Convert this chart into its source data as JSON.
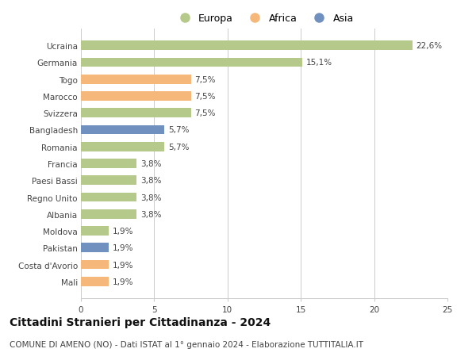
{
  "countries": [
    "Ucraina",
    "Germania",
    "Togo",
    "Marocco",
    "Svizzera",
    "Bangladesh",
    "Romania",
    "Francia",
    "Paesi Bassi",
    "Regno Unito",
    "Albania",
    "Moldova",
    "Pakistan",
    "Costa d'Avorio",
    "Mali"
  ],
  "values": [
    22.6,
    15.1,
    7.5,
    7.5,
    7.5,
    5.7,
    5.7,
    3.8,
    3.8,
    3.8,
    3.8,
    1.9,
    1.9,
    1.9,
    1.9
  ],
  "labels": [
    "22,6%",
    "15,1%",
    "7,5%",
    "7,5%",
    "7,5%",
    "5,7%",
    "5,7%",
    "3,8%",
    "3,8%",
    "3,8%",
    "3,8%",
    "1,9%",
    "1,9%",
    "1,9%",
    "1,9%"
  ],
  "continents": [
    "Europa",
    "Europa",
    "Africa",
    "Africa",
    "Europa",
    "Asia",
    "Europa",
    "Europa",
    "Europa",
    "Europa",
    "Europa",
    "Europa",
    "Asia",
    "Africa",
    "Africa"
  ],
  "colors": {
    "Europa": "#b5c98a",
    "Africa": "#f5b87a",
    "Asia": "#7090c0"
  },
  "xlim": [
    0,
    25
  ],
  "xticks": [
    0,
    5,
    10,
    15,
    20,
    25
  ],
  "title": "Cittadini Stranieri per Cittadinanza - 2024",
  "subtitle": "COMUNE DI AMENO (NO) - Dati ISTAT al 1° gennaio 2024 - Elaborazione TUTTITALIA.IT",
  "background_color": "#ffffff",
  "grid_color": "#cccccc",
  "bar_height": 0.55,
  "label_fontsize": 7.5,
  "tick_fontsize": 7.5,
  "title_fontsize": 10,
  "subtitle_fontsize": 7.5
}
